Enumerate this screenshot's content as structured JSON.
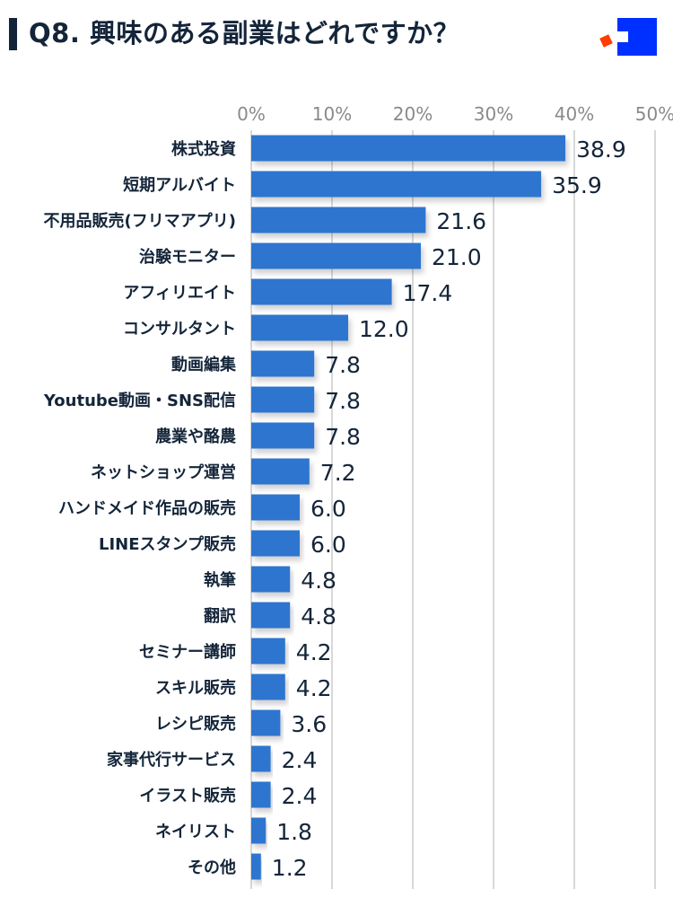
{
  "title": "Q8. 興味のある副業はどれですか？",
  "colors": {
    "bar": "#2f74d0",
    "title": "#14253a",
    "tick": "#8a8a8a",
    "grid": "#cccccc",
    "logo_blue": "#0030ff",
    "logo_red": "#ff3d00"
  },
  "logo_icon": "square-logo-icon",
  "chart_data": {
    "type": "bar",
    "orientation": "horizontal",
    "title": "Q8. 興味のある副業はどれですか？",
    "xlabel": "",
    "ylabel": "",
    "xlim": [
      0,
      50
    ],
    "x_ticks": [
      "0%",
      "10%",
      "20%",
      "30%",
      "40%",
      "50%"
    ],
    "grid": true,
    "categories": [
      "株式投資",
      "短期アルバイト",
      "不用品販売(フリマアプリ)",
      "治験モニター",
      "アフィリエイト",
      "コンサルタント",
      "動画編集",
      "Youtube動画・SNS配信",
      "農業や酪農",
      "ネットショップ運営",
      "ハンドメイド作品の販売",
      "LINEスタンプ販売",
      "執筆",
      "翻訳",
      "セミナー講師",
      "スキル販売",
      "レシピ販売",
      "家事代行サービス",
      "イラスト販売",
      "ネイリスト",
      "その他"
    ],
    "values": [
      38.9,
      35.9,
      21.6,
      21.0,
      17.4,
      12.0,
      7.8,
      7.8,
      7.8,
      7.2,
      6.0,
      6.0,
      4.8,
      4.8,
      4.2,
      4.2,
      3.6,
      2.4,
      2.4,
      1.8,
      1.2
    ],
    "value_labels": [
      "38.9",
      "35.9",
      "21.6",
      "21.0",
      "17.4",
      "12.0",
      "7.8",
      "7.8",
      "7.8",
      "7.2",
      "6.0",
      "6.0",
      "4.8",
      "4.8",
      "4.2",
      "4.2",
      "3.6",
      "2.4",
      "2.4",
      "1.8",
      "1.2"
    ]
  }
}
